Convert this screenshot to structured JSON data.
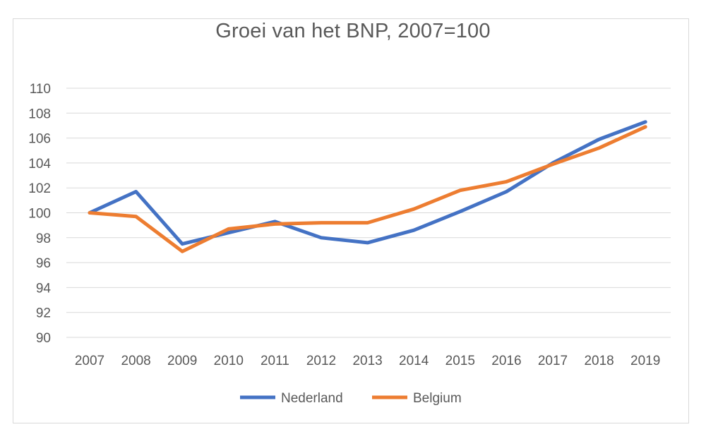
{
  "chart_data": {
    "type": "line",
    "title": "Groei van het BNP, 2007=100",
    "xlabel": "",
    "ylabel": "",
    "x": [
      "2007",
      "2008",
      "2009",
      "2010",
      "2011",
      "2012",
      "2013",
      "2014",
      "2015",
      "2016",
      "2017",
      "2018",
      "2019"
    ],
    "ylim": [
      90,
      110
    ],
    "yticks": [
      "90",
      "92",
      "94",
      "96",
      "98",
      "100",
      "102",
      "104",
      "106",
      "108",
      "110"
    ],
    "grid": true,
    "legend_position": "bottom",
    "series": [
      {
        "name": "Nederland",
        "color": "#4472C4",
        "values": [
          100.0,
          101.7,
          97.5,
          98.4,
          99.3,
          98.0,
          97.6,
          98.6,
          100.1,
          101.7,
          104.0,
          105.9,
          107.3
        ]
      },
      {
        "name": "Belgium",
        "color": "#ED7D31",
        "values": [
          100.0,
          99.7,
          96.9,
          98.7,
          99.1,
          99.2,
          99.2,
          100.3,
          101.8,
          102.5,
          103.9,
          105.2,
          106.9
        ]
      }
    ]
  }
}
